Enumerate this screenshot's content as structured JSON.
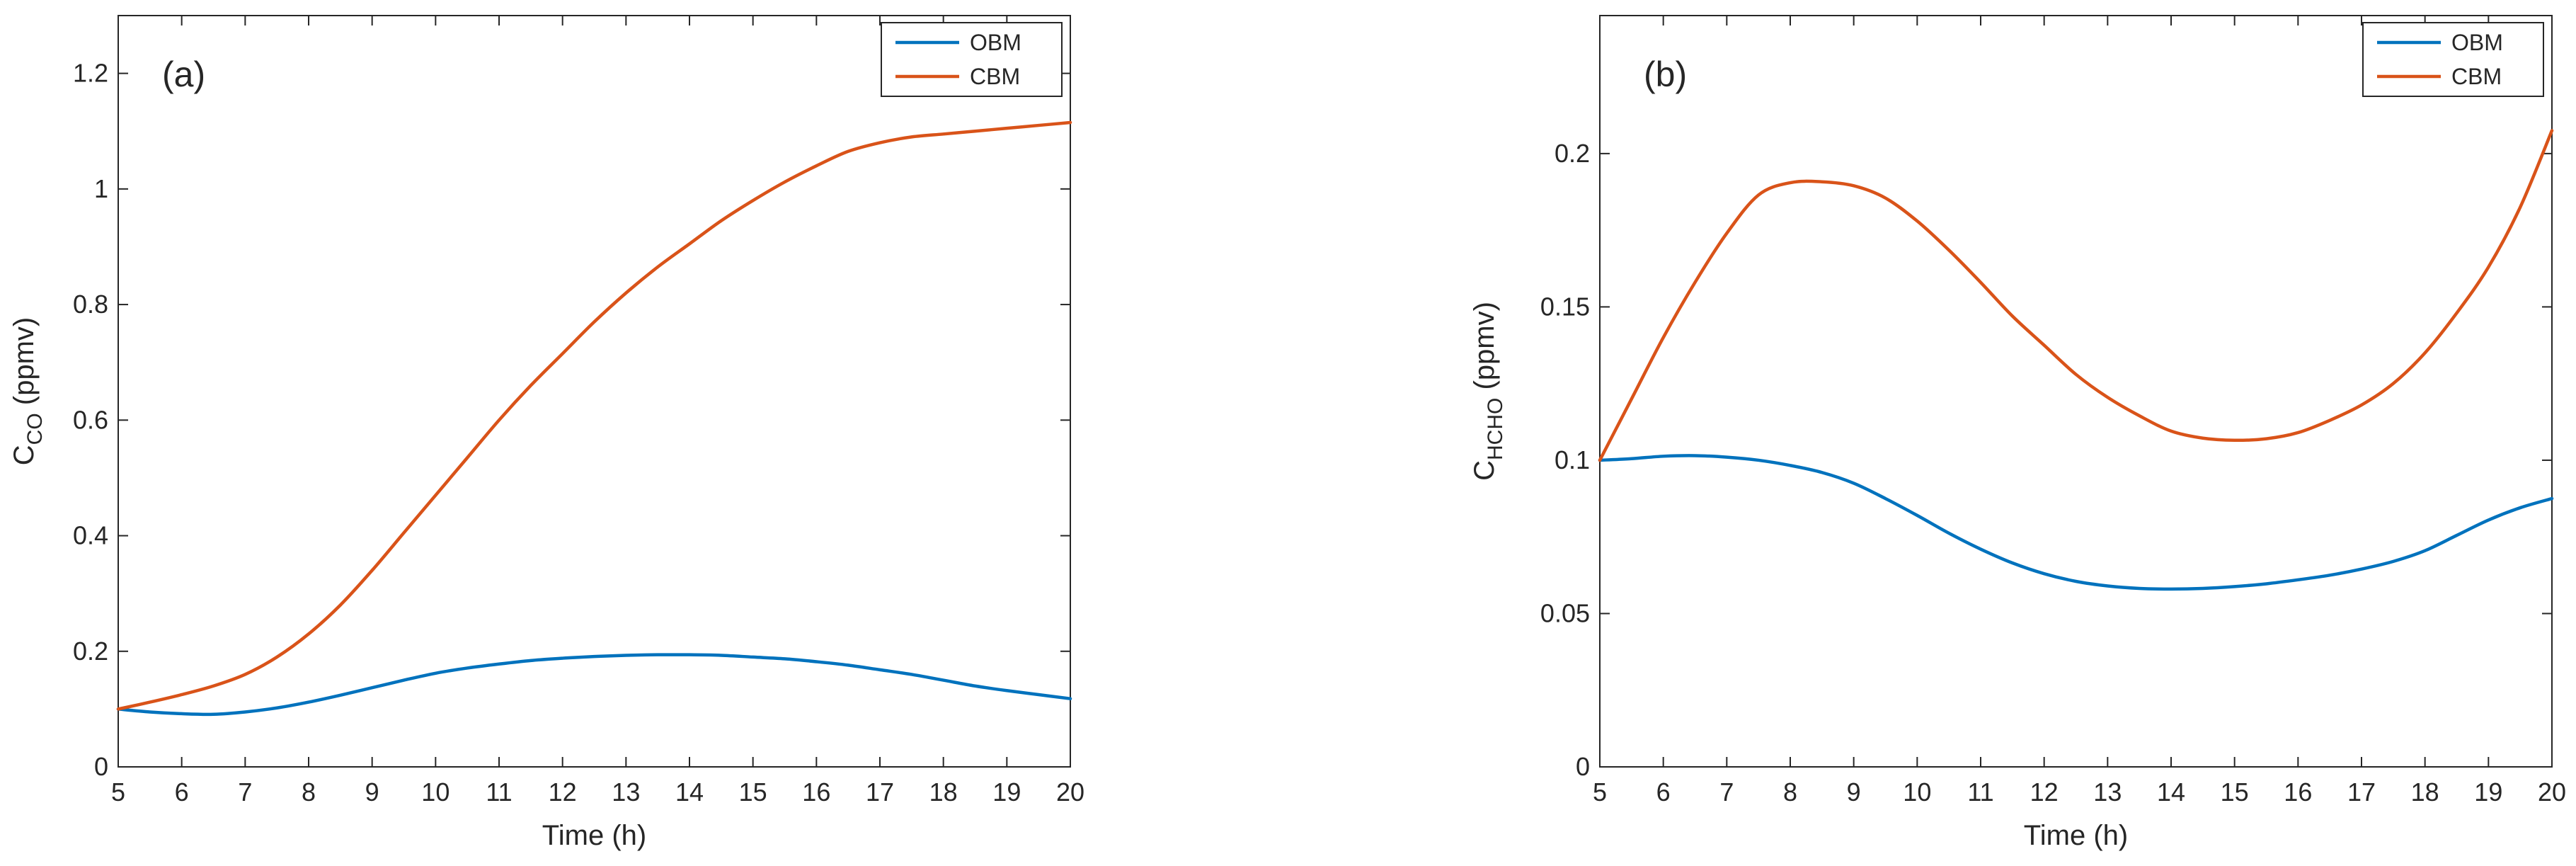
{
  "chart_data": [
    {
      "type": "line",
      "panel_label": "(a)",
      "xlabel": "Time (h)",
      "ylabel_main": "C",
      "ylabel_sub": "CO",
      "ylabel_unit": " (ppmv)",
      "xlim": [
        5,
        20
      ],
      "ylim": [
        0,
        1.3
      ],
      "xticks": [
        5,
        6,
        7,
        8,
        9,
        10,
        11,
        12,
        13,
        14,
        15,
        16,
        17,
        18,
        19,
        20
      ],
      "xtick_labels": [
        "5",
        "6",
        "7",
        "8",
        "9",
        "10",
        "11",
        "12",
        "13",
        "14",
        "15",
        "16",
        "17",
        "18",
        "19",
        "20"
      ],
      "yticks": [
        0,
        0.2,
        0.4,
        0.6,
        0.8,
        1,
        1.2
      ],
      "ytick_labels": [
        "0",
        "0.2",
        "0.4",
        "0.6",
        "0.8",
        "1",
        "1.2"
      ],
      "legend_position": "top-right",
      "grid": false,
      "x": [
        5,
        5.5,
        6,
        6.5,
        7,
        7.5,
        8,
        8.5,
        9,
        9.5,
        10,
        10.5,
        11,
        11.5,
        12,
        12.5,
        13,
        13.5,
        14,
        14.5,
        15,
        15.5,
        16,
        16.5,
        17,
        17.5,
        18,
        18.5,
        19,
        19.5,
        20
      ],
      "series": [
        {
          "name": "OBM",
          "color": "#0072BD",
          "values": [
            0.1,
            0.095,
            0.092,
            0.091,
            0.095,
            0.102,
            0.112,
            0.124,
            0.137,
            0.15,
            0.162,
            0.171,
            0.178,
            0.184,
            0.188,
            0.191,
            0.193,
            0.194,
            0.194,
            0.193,
            0.19,
            0.187,
            0.182,
            0.176,
            0.168,
            0.16,
            0.15,
            0.14,
            0.132,
            0.125,
            0.118
          ]
        },
        {
          "name": "CBM",
          "color": "#D95319",
          "values": [
            0.1,
            0.112,
            0.125,
            0.14,
            0.16,
            0.19,
            0.23,
            0.28,
            0.34,
            0.405,
            0.47,
            0.535,
            0.6,
            0.66,
            0.715,
            0.77,
            0.82,
            0.865,
            0.905,
            0.945,
            0.98,
            1.012,
            1.04,
            1.065,
            1.08,
            1.09,
            1.095,
            1.1,
            1.105,
            1.11,
            1.115
          ]
        }
      ]
    },
    {
      "type": "line",
      "panel_label": "(b)",
      "xlabel": "Time (h)",
      "ylabel_main": "C",
      "ylabel_sub": "HCHO",
      "ylabel_unit": " (ppmv)",
      "xlim": [
        5,
        20
      ],
      "ylim": [
        0,
        0.245
      ],
      "xticks": [
        5,
        6,
        7,
        8,
        9,
        10,
        11,
        12,
        13,
        14,
        15,
        16,
        17,
        18,
        19,
        20
      ],
      "xtick_labels": [
        "5",
        "6",
        "7",
        "8",
        "9",
        "10",
        "11",
        "12",
        "13",
        "14",
        "15",
        "16",
        "17",
        "18",
        "19",
        "20"
      ],
      "yticks": [
        0,
        0.05,
        0.1,
        0.15,
        0.2
      ],
      "ytick_labels": [
        "0",
        "0.05",
        "0.1",
        "0.15",
        "0.2"
      ],
      "legend_position": "top-right",
      "grid": false,
      "x": [
        5,
        5.5,
        6,
        6.5,
        7,
        7.5,
        8,
        8.5,
        9,
        9.5,
        10,
        10.5,
        11,
        11.5,
        12,
        12.5,
        13,
        13.5,
        14,
        14.5,
        15,
        15.5,
        16,
        16.5,
        17,
        17.5,
        18,
        18.5,
        19,
        19.5,
        20
      ],
      "series": [
        {
          "name": "OBM",
          "color": "#0072BD",
          "values": [
            0.1,
            0.1005,
            0.1013,
            0.1015,
            0.101,
            0.1,
            0.0983,
            0.096,
            0.0925,
            0.0875,
            0.082,
            0.0762,
            0.071,
            0.0665,
            0.063,
            0.0605,
            0.059,
            0.0582,
            0.058,
            0.0582,
            0.0588,
            0.0597,
            0.061,
            0.0625,
            0.0645,
            0.067,
            0.0705,
            0.0755,
            0.0805,
            0.0845,
            0.0875
          ]
        },
        {
          "name": "CBM",
          "color": "#D95319",
          "values": [
            0.1,
            0.12,
            0.14,
            0.158,
            0.174,
            0.1865,
            0.1905,
            0.1908,
            0.1895,
            0.1855,
            0.178,
            0.1685,
            0.158,
            0.147,
            0.1375,
            0.128,
            0.1205,
            0.1145,
            0.1095,
            0.1072,
            0.1065,
            0.107,
            0.109,
            0.113,
            0.118,
            0.125,
            0.135,
            0.148,
            0.163,
            0.1825,
            0.2075
          ]
        }
      ]
    }
  ]
}
